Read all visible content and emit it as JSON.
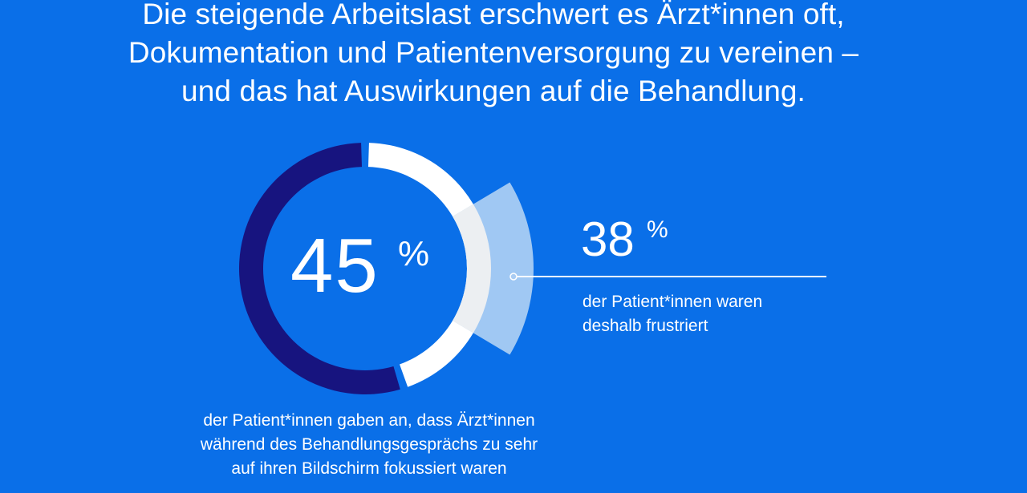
{
  "headline": {
    "lines": [
      "Die steigende Arbeitslast erschwert es Ärzt*innen oft,",
      "Dokumentation und Patientenversorgung zu vereinen –",
      "und das hat Auswirkungen auf die Behandlung."
    ]
  },
  "chart_data": {
    "type": "pie",
    "title": "",
    "series": [
      {
        "value": 45,
        "display_value": "45",
        "unit": "%",
        "caption_lines": [
          "der Patient*innen gaben an, dass Ärzt*innen",
          "während des Behandlungsgesprächs zu sehr",
          "auf ihren Bildschirm fokussiert waren"
        ]
      },
      {
        "value": 38,
        "display_value": "38",
        "unit": "%",
        "caption_lines": [
          "der Patient*innen waren",
          "deshalb frustriert"
        ]
      }
    ]
  },
  "colors": {
    "background": "#0a6fe8",
    "ring_dark": "#17147f",
    "ring_light": "#ffffff",
    "sub_segment": "#a9ccf3",
    "overlap": "#eceff2",
    "text": "#ffffff"
  }
}
